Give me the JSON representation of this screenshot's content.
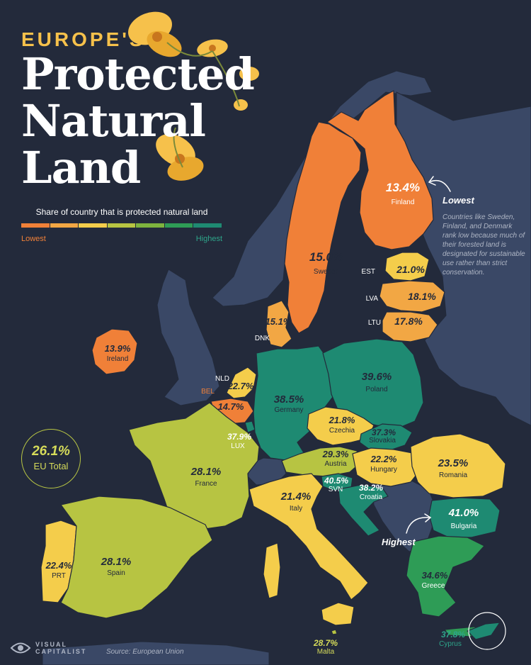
{
  "header": {
    "kicker": "EUROPE'S",
    "title_lines": [
      "Protected",
      "Natural",
      "Land"
    ]
  },
  "legend": {
    "title": "Share of country that is protected natural land",
    "low_label": "Lowest",
    "high_label": "Highest",
    "colors": [
      "#f08038",
      "#f2a744",
      "#f4cd4b",
      "#b7c442",
      "#7eb33e",
      "#2e9c56",
      "#1e8a72"
    ]
  },
  "eu_total": {
    "value": "26.1%",
    "label": "EU Total"
  },
  "notes": {
    "lowest_label": "Lowest",
    "lowest_text": "Countries like Sweden, Finland, and Denmark rank low because much of their forested land is designated for sustainable use rather than strict conservation.",
    "highest_label": "Highest"
  },
  "countries": [
    {
      "key": "finland",
      "name": "Finland",
      "value": "13.4%",
      "pct": 13.4
    },
    {
      "key": "sweden",
      "name": "Sweden",
      "value": "15.0%",
      "pct": 15.0
    },
    {
      "key": "estonia",
      "name": "EST",
      "value": "21.0%",
      "pct": 21.0
    },
    {
      "key": "latvia",
      "name": "LVA",
      "value": "18.1%",
      "pct": 18.1
    },
    {
      "key": "lithuania",
      "name": "LTU",
      "value": "17.8%",
      "pct": 17.8
    },
    {
      "key": "denmark",
      "name": "DNK",
      "value": "15.1%",
      "pct": 15.1
    },
    {
      "key": "ireland",
      "name": "Ireland",
      "value": "13.9%",
      "pct": 13.9
    },
    {
      "key": "netherlands",
      "name": "NLD",
      "value": "22.7%",
      "pct": 22.7
    },
    {
      "key": "belgium",
      "name": "BEL",
      "value": "14.7%",
      "pct": 14.7
    },
    {
      "key": "luxembourg",
      "name": "LUX",
      "value": "37.9%",
      "pct": 37.9
    },
    {
      "key": "germany",
      "name": "Germany",
      "value": "38.5%",
      "pct": 38.5
    },
    {
      "key": "poland",
      "name": "Poland",
      "value": "39.6%",
      "pct": 39.6
    },
    {
      "key": "czechia",
      "name": "Czechia",
      "value": "21.8%",
      "pct": 21.8
    },
    {
      "key": "slovakia",
      "name": "Slovakia",
      "value": "37.3%",
      "pct": 37.3
    },
    {
      "key": "austria",
      "name": "Austria",
      "value": "29.3%",
      "pct": 29.3
    },
    {
      "key": "hungary",
      "name": "Hungary",
      "value": "22.2%",
      "pct": 22.2
    },
    {
      "key": "romania",
      "name": "Romania",
      "value": "23.5%",
      "pct": 23.5
    },
    {
      "key": "france",
      "name": "France",
      "value": "28.1%",
      "pct": 28.1
    },
    {
      "key": "slovenia",
      "name": "SVN",
      "value": "40.5%",
      "pct": 40.5
    },
    {
      "key": "croatia",
      "name": "Croatia",
      "value": "38.2%",
      "pct": 38.2
    },
    {
      "key": "bulgaria",
      "name": "Bulgaria",
      "value": "41.0%",
      "pct": 41.0
    },
    {
      "key": "italy",
      "name": "Italy",
      "value": "21.4%",
      "pct": 21.4
    },
    {
      "key": "portugal",
      "name": "PRT",
      "value": "22.4%",
      "pct": 22.4
    },
    {
      "key": "spain",
      "name": "Spain",
      "value": "28.1%",
      "pct": 28.1
    },
    {
      "key": "greece",
      "name": "Greece",
      "value": "34.6%",
      "pct": 34.6
    },
    {
      "key": "malta",
      "name": "Malta",
      "value": "28.7%",
      "pct": 28.7
    },
    {
      "key": "cyprus",
      "name": "Cyprus",
      "value": "37.8%",
      "pct": 37.8
    }
  ],
  "footer": {
    "brand": "VISUAL CAPITALIST",
    "source": "Source: European Union"
  }
}
